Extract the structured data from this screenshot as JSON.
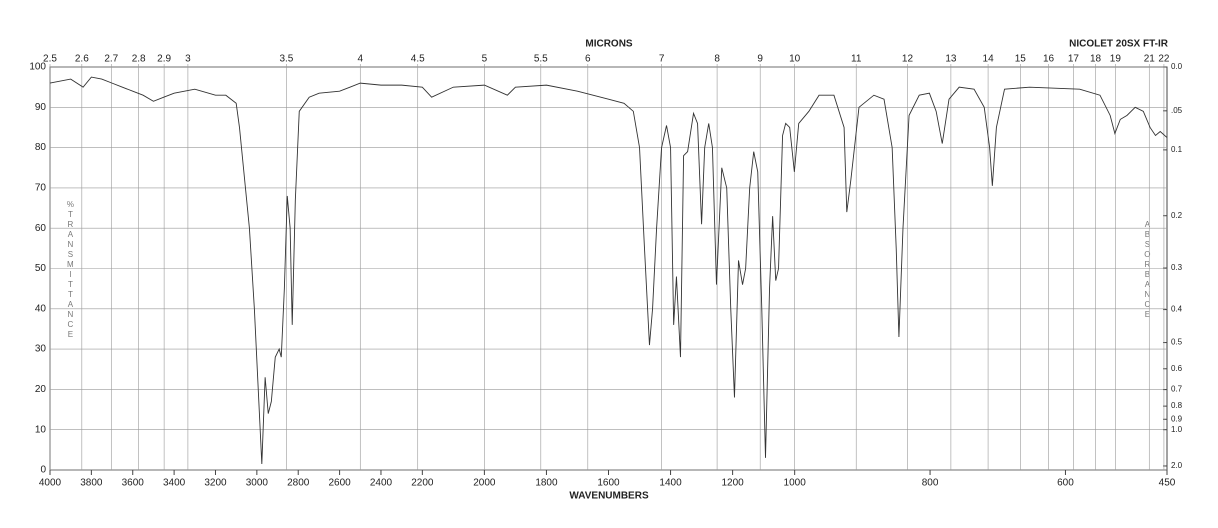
{
  "chart_data": {
    "type": "line",
    "x2_label": "MICRONS",
    "xlabel": "WAVENUMBERS",
    "ylabel": "%TRANSMITTANCE",
    "y2label": "ABSORBANCE",
    "annotation": "NICOLET 20SX FT-IR",
    "xlim": [
      4000,
      450
    ],
    "x_scale_breaks": [
      2200,
      1000
    ],
    "xticks": [
      4000,
      3800,
      3600,
      3400,
      3200,
      3000,
      2800,
      2600,
      2400,
      2200,
      2000,
      1800,
      1600,
      1400,
      1200,
      1000,
      800,
      600,
      450
    ],
    "x2_scale": "reciprocal",
    "x2ticks": [
      2.5,
      2.6,
      2.7,
      2.8,
      2.9,
      3,
      3.5,
      4,
      4.5,
      5,
      5.5,
      6,
      7,
      8,
      9,
      10,
      11,
      12,
      13,
      14,
      15,
      16,
      17,
      18,
      19,
      21,
      22
    ],
    "ylim": [
      0,
      100
    ],
    "yticks": [
      0,
      10,
      20,
      30,
      40,
      50,
      60,
      70,
      80,
      90,
      100
    ],
    "y2_scale": "absorbance",
    "y2ticks": [
      {
        "value": 0,
        "label": "0.0"
      },
      {
        "value": 0.05,
        "label": ".05"
      },
      0.1,
      0.2,
      0.3,
      0.4,
      0.5,
      0.6,
      0.7,
      0.8,
      0.9,
      {
        "value": 1,
        "label": "1.0"
      },
      {
        "value": 2,
        "label": "2.0"
      }
    ],
    "grid": true,
    "color": "#333333",
    "x": [
      4000,
      3900,
      3840,
      3800,
      3750,
      3700,
      3650,
      3600,
      3550,
      3500,
      3450,
      3400,
      3300,
      3200,
      3150,
      3100,
      3084,
      3036,
      3012,
      2976,
      2960,
      2945,
      2930,
      2911,
      2892,
      2882,
      2867,
      2853,
      2839,
      2829,
      2814,
      2795,
      2747,
      2699,
      2600,
      2550,
      2500,
      2400,
      2300,
      2200,
      2170,
      2100,
      2000,
      1926,
      1900,
      1800,
      1700,
      1650,
      1600,
      1550,
      1520,
      1500,
      1484,
      1468,
      1458,
      1445,
      1429,
      1413,
      1400,
      1390,
      1381,
      1368,
      1358,
      1345,
      1326,
      1313,
      1300,
      1290,
      1277,
      1265,
      1252,
      1235,
      1219,
      1206,
      1194,
      1181,
      1168,
      1158,
      1145,
      1132,
      1119,
      1106,
      1094,
      1081,
      1071,
      1061,
      1052,
      1039,
      1029,
      1016,
      1001,
      994,
      979,
      964,
      942,
      927,
      923,
      917,
      905,
      883,
      868,
      856,
      850,
      846,
      840,
      831,
      816,
      801,
      791,
      782,
      772,
      757,
      735,
      720,
      712,
      708,
      702,
      690,
      653,
      579,
      549,
      534,
      527,
      519,
      509,
      497,
      485,
      475,
      467,
      460,
      450
    ],
    "values": [
      96,
      97,
      95,
      97.5,
      97,
      96,
      95,
      94,
      93,
      91.5,
      92.5,
      93.5,
      94.5,
      93,
      93,
      91,
      85,
      60,
      40,
      1.5,
      23,
      14,
      17,
      28,
      30,
      28,
      45,
      68,
      60,
      36,
      67,
      89,
      92.5,
      93.5,
      94,
      95,
      96,
      95.5,
      95.5,
      95,
      92.5,
      95,
      95.5,
      93,
      95,
      95.5,
      94,
      93,
      92,
      91,
      89,
      80,
      55,
      31,
      40,
      60,
      80,
      85.5,
      80,
      36,
      48,
      28,
      78,
      79,
      88.5,
      86,
      61,
      80,
      86,
      80,
      46,
      75,
      70,
      40,
      18,
      52,
      46,
      50,
      70,
      79,
      74,
      40,
      3,
      45,
      63,
      47,
      50,
      83,
      86,
      85,
      74,
      86,
      89,
      93,
      93,
      85,
      64,
      72,
      90,
      93,
      92,
      80,
      55,
      33,
      60,
      88,
      93,
      93.5,
      89,
      81,
      92,
      95,
      94.5,
      90,
      80,
      70.5,
      85,
      94.5,
      95,
      94.5,
      93,
      88,
      83.5,
      87,
      88,
      90,
      89,
      85,
      83,
      84,
      82.5
    ]
  }
}
